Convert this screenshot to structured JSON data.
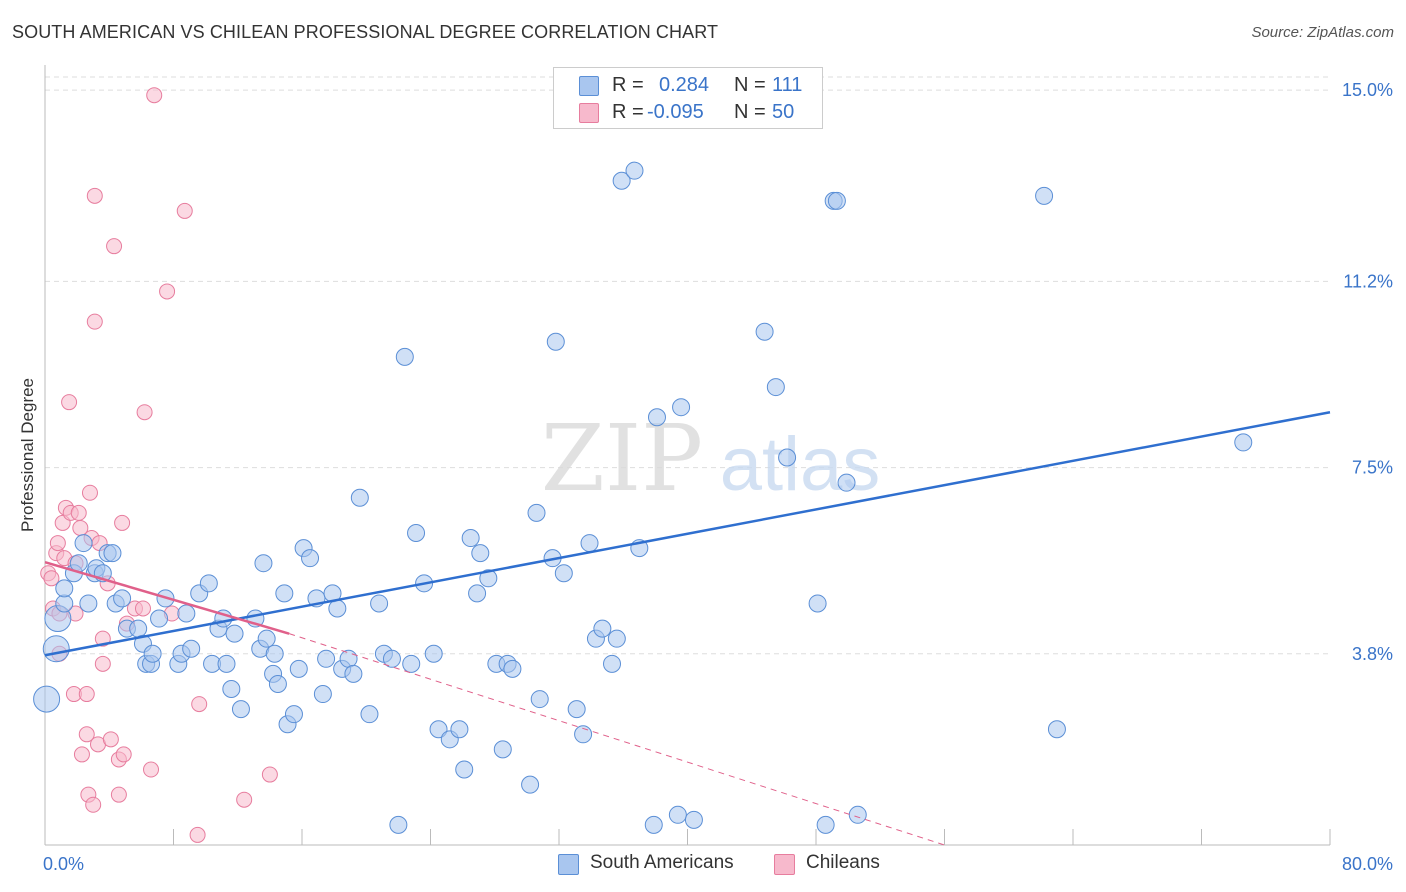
{
  "title": "SOUTH AMERICAN VS CHILEAN PROFESSIONAL DEGREE CORRELATION CHART",
  "source": "Source: ZipAtlas.com",
  "colors": {
    "blue_fill": "#a9c6ef",
    "blue_stroke": "#5b8fd6",
    "blue_line": "#2f6fcf",
    "pink_fill": "#f7b9cc",
    "pink_stroke": "#e77d9e",
    "pink_line": "#e0608a",
    "axis_text": "#3a74c9",
    "grid": "#dddddd"
  },
  "legend": {
    "rows": [
      {
        "r_label": "R =",
        "r_value": "0.284",
        "n_label": "N =",
        "n_value": "111",
        "series": "south_americans"
      },
      {
        "r_label": "R =",
        "r_value": "-0.095",
        "n_label": "N =",
        "n_value": "50",
        "series": "chileans"
      }
    ]
  },
  "bottom_legend": [
    "South Americans",
    "Chileans"
  ],
  "watermark": {
    "zip": "ZIP",
    "atlas": "atlas"
  },
  "chart_data": {
    "type": "scatter",
    "title": "SOUTH AMERICAN VS CHILEAN PROFESSIONAL DEGREE CORRELATION CHART",
    "xlabel": "",
    "ylabel": "Professional Degree",
    "xlim": [
      0,
      80
    ],
    "ylim": [
      0,
      15.5
    ],
    "x_tick_labels": [
      "0.0%",
      "80.0%"
    ],
    "y_ticks": [
      3.8,
      7.5,
      11.2,
      15.0
    ],
    "y_tick_labels": [
      "3.8%",
      "7.5%",
      "11.2%",
      "15.0%"
    ],
    "grid": true,
    "legend_position": "top-center",
    "series": [
      {
        "name": "South Americans",
        "color": "#a9c6ef",
        "R": 0.284,
        "N": 111,
        "trend": {
          "x": [
            0,
            80
          ],
          "y": [
            3.77,
            8.6
          ],
          "dashed_extension": false
        },
        "points": [
          [
            0.1,
            2.9
          ],
          [
            0.7,
            3.9
          ],
          [
            0.8,
            4.5
          ],
          [
            1.2,
            4.8
          ],
          [
            1.2,
            5.1
          ],
          [
            1.8,
            5.4
          ],
          [
            2.1,
            5.6
          ],
          [
            2.4,
            6.0
          ],
          [
            2.7,
            4.8
          ],
          [
            3.1,
            5.4
          ],
          [
            3.2,
            5.5
          ],
          [
            3.6,
            5.4
          ],
          [
            3.9,
            5.8
          ],
          [
            4.2,
            5.8
          ],
          [
            4.4,
            4.8
          ],
          [
            4.8,
            4.9
          ],
          [
            5.1,
            4.3
          ],
          [
            5.8,
            4.3
          ],
          [
            6.1,
            4.0
          ],
          [
            6.3,
            3.6
          ],
          [
            6.6,
            3.6
          ],
          [
            6.7,
            3.8
          ],
          [
            7.1,
            4.5
          ],
          [
            7.5,
            4.9
          ],
          [
            8.3,
            3.6
          ],
          [
            8.5,
            3.8
          ],
          [
            8.8,
            4.6
          ],
          [
            9.1,
            3.9
          ],
          [
            9.6,
            5.0
          ],
          [
            10.2,
            5.2
          ],
          [
            10.4,
            3.6
          ],
          [
            10.8,
            4.3
          ],
          [
            11.1,
            4.5
          ],
          [
            11.3,
            3.6
          ],
          [
            11.6,
            3.1
          ],
          [
            11.8,
            4.2
          ],
          [
            12.2,
            2.7
          ],
          [
            13.1,
            4.5
          ],
          [
            13.4,
            3.9
          ],
          [
            13.6,
            5.6
          ],
          [
            13.8,
            4.1
          ],
          [
            14.2,
            3.4
          ],
          [
            14.3,
            3.8
          ],
          [
            14.5,
            3.2
          ],
          [
            14.9,
            5.0
          ],
          [
            15.1,
            2.4
          ],
          [
            15.5,
            2.6
          ],
          [
            15.8,
            3.5
          ],
          [
            16.1,
            5.9
          ],
          [
            16.5,
            5.7
          ],
          [
            16.9,
            4.9
          ],
          [
            17.3,
            3.0
          ],
          [
            17.5,
            3.7
          ],
          [
            17.9,
            5.0
          ],
          [
            18.2,
            4.7
          ],
          [
            18.5,
            3.5
          ],
          [
            18.9,
            3.7
          ],
          [
            19.2,
            3.4
          ],
          [
            19.6,
            6.9
          ],
          [
            20.2,
            2.6
          ],
          [
            20.8,
            4.8
          ],
          [
            21.1,
            3.8
          ],
          [
            21.6,
            3.7
          ],
          [
            22.0,
            0.4
          ],
          [
            22.4,
            9.7
          ],
          [
            22.8,
            3.6
          ],
          [
            23.1,
            6.2
          ],
          [
            23.6,
            5.2
          ],
          [
            24.2,
            3.8
          ],
          [
            24.5,
            2.3
          ],
          [
            25.2,
            2.1
          ],
          [
            25.8,
            2.3
          ],
          [
            26.1,
            1.5
          ],
          [
            26.5,
            6.1
          ],
          [
            26.9,
            5.0
          ],
          [
            27.1,
            5.8
          ],
          [
            27.6,
            5.3
          ],
          [
            28.1,
            3.6
          ],
          [
            28.5,
            1.9
          ],
          [
            28.8,
            3.6
          ],
          [
            29.1,
            3.5
          ],
          [
            30.2,
            1.2
          ],
          [
            30.6,
            6.6
          ],
          [
            30.8,
            2.9
          ],
          [
            31.6,
            5.7
          ],
          [
            31.8,
            10.0
          ],
          [
            32.3,
            5.4
          ],
          [
            33.1,
            2.7
          ],
          [
            33.5,
            2.2
          ],
          [
            33.9,
            6.0
          ],
          [
            34.3,
            4.1
          ],
          [
            34.7,
            4.3
          ],
          [
            35.3,
            3.6
          ],
          [
            35.6,
            4.1
          ],
          [
            35.9,
            13.2
          ],
          [
            36.7,
            13.4
          ],
          [
            37.0,
            5.9
          ],
          [
            37.9,
            0.4
          ],
          [
            38.1,
            8.5
          ],
          [
            39.4,
            0.6
          ],
          [
            39.6,
            8.7
          ],
          [
            40.4,
            0.5
          ],
          [
            44.8,
            10.2
          ],
          [
            45.5,
            9.1
          ],
          [
            46.2,
            7.7
          ],
          [
            48.1,
            4.8
          ],
          [
            48.6,
            0.4
          ],
          [
            49.1,
            12.8
          ],
          [
            49.3,
            12.8
          ],
          [
            49.9,
            7.2
          ],
          [
            50.6,
            0.6
          ],
          [
            62.2,
            12.9
          ],
          [
            63.0,
            2.3
          ],
          [
            74.6,
            8.0
          ]
        ]
      },
      {
        "name": "Chileans",
        "color": "#f7b9cc",
        "R": -0.095,
        "N": 50,
        "trend": {
          "x": [
            0,
            15.2
          ],
          "y": [
            5.62,
            4.2
          ],
          "dashed_extension_x": [
            15.2,
            56
          ],
          "dashed_extension_y": [
            4.2,
            0.0
          ]
        },
        "points": [
          [
            0.2,
            5.4
          ],
          [
            0.4,
            5.3
          ],
          [
            0.5,
            4.7
          ],
          [
            0.7,
            5.8
          ],
          [
            0.8,
            6.0
          ],
          [
            0.9,
            4.6
          ],
          [
            0.9,
            3.8
          ],
          [
            1.1,
            6.4
          ],
          [
            1.2,
            5.7
          ],
          [
            1.3,
            6.7
          ],
          [
            1.5,
            8.8
          ],
          [
            1.6,
            6.6
          ],
          [
            1.8,
            3.0
          ],
          [
            1.9,
            5.6
          ],
          [
            1.9,
            4.6
          ],
          [
            2.1,
            6.6
          ],
          [
            2.2,
            6.3
          ],
          [
            2.3,
            1.8
          ],
          [
            2.6,
            3.0
          ],
          [
            2.6,
            2.2
          ],
          [
            2.7,
            1.0
          ],
          [
            2.8,
            7.0
          ],
          [
            2.9,
            6.1
          ],
          [
            3.0,
            0.8
          ],
          [
            3.1,
            10.4
          ],
          [
            3.1,
            12.9
          ],
          [
            3.3,
            2.0
          ],
          [
            3.4,
            6.0
          ],
          [
            3.6,
            3.6
          ],
          [
            3.6,
            4.1
          ],
          [
            3.9,
            5.2
          ],
          [
            4.1,
            2.1
          ],
          [
            4.3,
            11.9
          ],
          [
            4.6,
            1.0
          ],
          [
            4.6,
            1.7
          ],
          [
            4.8,
            6.4
          ],
          [
            4.9,
            1.8
          ],
          [
            5.1,
            4.4
          ],
          [
            5.6,
            4.7
          ],
          [
            6.1,
            4.7
          ],
          [
            6.2,
            8.6
          ],
          [
            6.6,
            1.5
          ],
          [
            6.8,
            14.9
          ],
          [
            7.6,
            11.0
          ],
          [
            7.9,
            4.6
          ],
          [
            8.7,
            12.6
          ],
          [
            9.5,
            0.2
          ],
          [
            9.6,
            2.8
          ],
          [
            12.4,
            0.9
          ],
          [
            14.0,
            1.4
          ]
        ]
      }
    ]
  }
}
